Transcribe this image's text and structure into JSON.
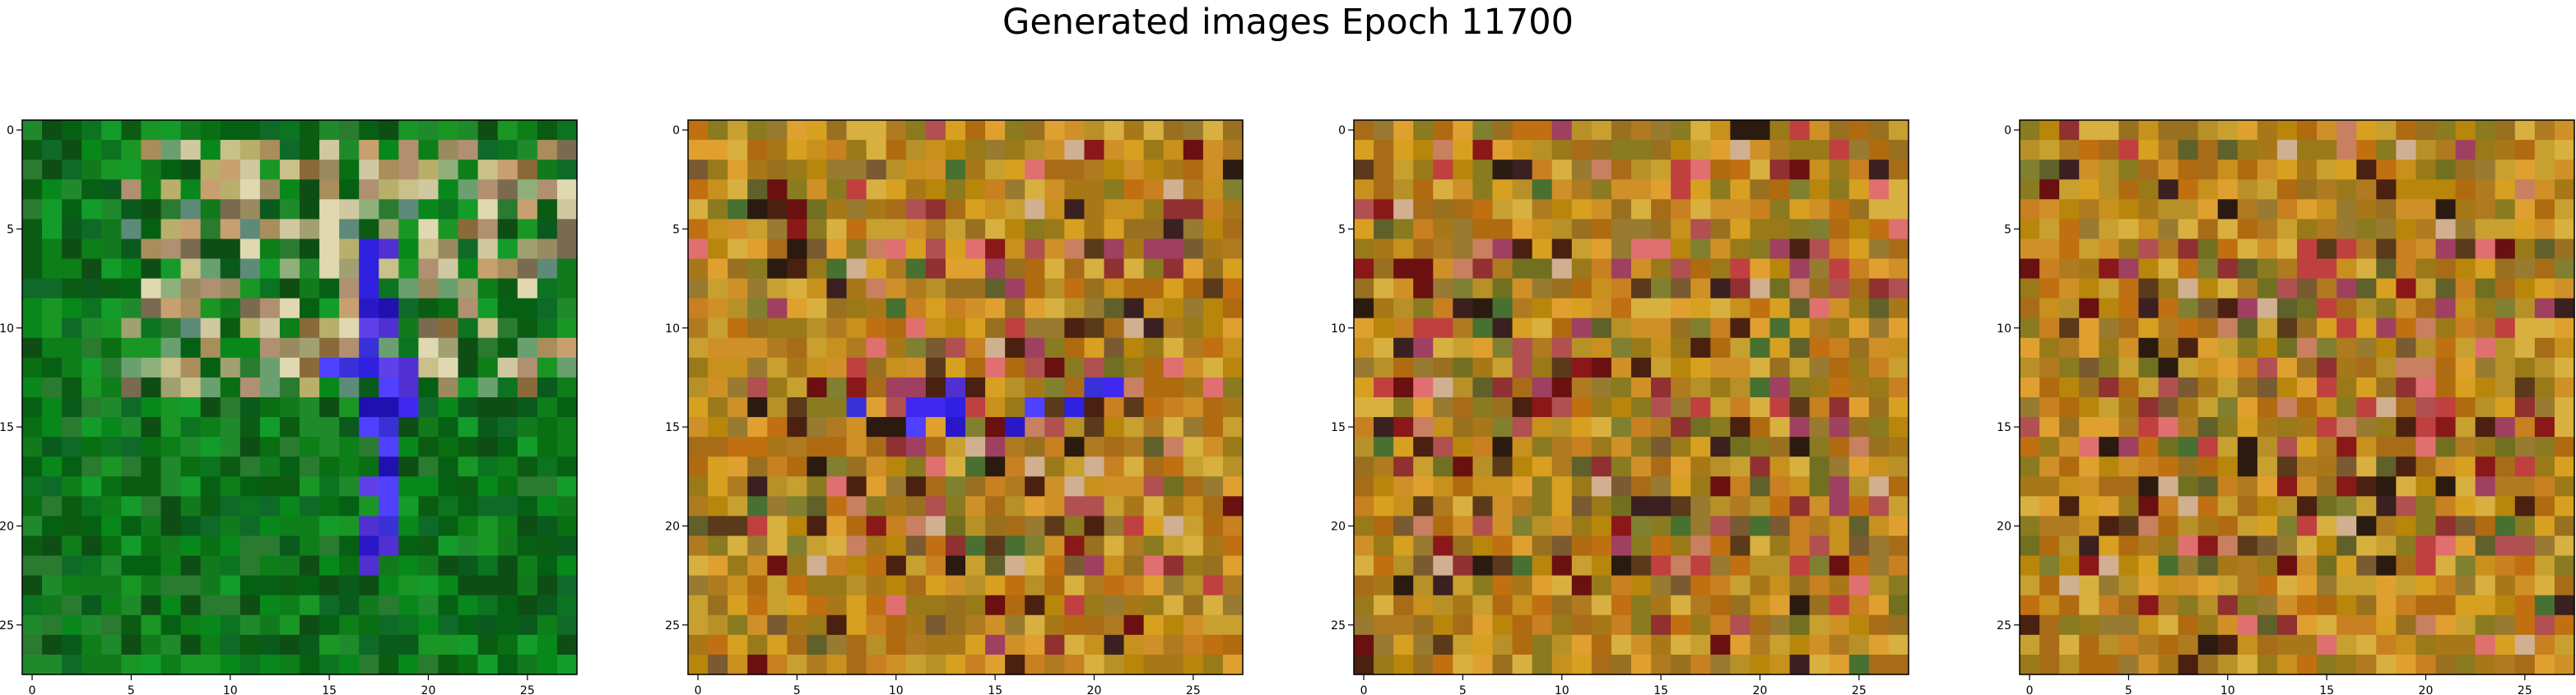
{
  "figure": {
    "title": "Generated images Epoch 11700"
  },
  "panels": [
    {
      "palette": "green",
      "x_ticks": [
        "0",
        "5",
        "10",
        "15",
        "20",
        "25"
      ],
      "y_ticks": [
        "0",
        "5",
        "10",
        "15",
        "20",
        "25"
      ]
    },
    {
      "palette": "ochre",
      "x_ticks": [
        "0",
        "5",
        "10",
        "15",
        "20",
        "25"
      ],
      "y_ticks": [
        "0",
        "5",
        "10",
        "15",
        "20",
        "25"
      ]
    },
    {
      "palette": "ochre",
      "x_ticks": [
        "0",
        "5",
        "10",
        "15",
        "20",
        "25"
      ],
      "y_ticks": [
        "0",
        "5",
        "10",
        "15",
        "20",
        "25"
      ]
    },
    {
      "palette": "ochre",
      "x_ticks": [
        "0",
        "5",
        "10",
        "15",
        "20",
        "25"
      ],
      "y_ticks": [
        "0",
        "5",
        "10",
        "15",
        "20",
        "25"
      ]
    }
  ],
  "image_grid": {
    "rows": 28,
    "cols": 28
  }
}
